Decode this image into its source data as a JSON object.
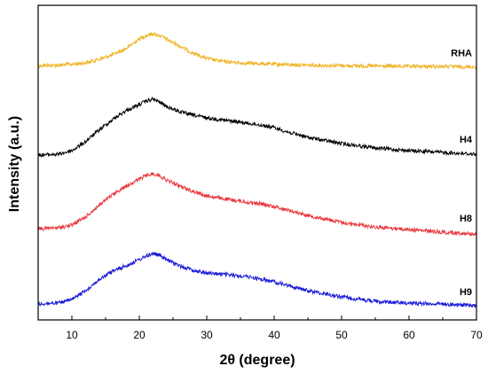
{
  "chart_data": {
    "type": "line",
    "title": "",
    "xlabel": "2θ (degree)",
    "ylabel": "Intensity (a.u.)",
    "xlim": [
      5,
      70
    ],
    "xticks": [
      10,
      20,
      30,
      40,
      50,
      60,
      70
    ],
    "yticks_shown": false,
    "grid": false,
    "legend": "labels at right end of each curve",
    "series": [
      {
        "name": "RHA",
        "color": "#f0b323",
        "x": [
          5,
          8,
          10,
          12,
          14,
          16,
          18,
          20,
          21,
          22,
          23,
          24,
          26,
          28,
          30,
          32,
          35,
          40,
          45,
          50,
          55,
          60,
          65,
          70
        ],
        "y": [
          74,
          73.5,
          72.5,
          71,
          67,
          62,
          55,
          44,
          40,
          38,
          40,
          44,
          52,
          60,
          66,
          69,
          71,
          72.5,
          73.5,
          74,
          74.5,
          75,
          75,
          75.5
        ]
      },
      {
        "name": "H4",
        "color": "#000000",
        "x": [
          5,
          8,
          10,
          12,
          14,
          16,
          18,
          20,
          21,
          22,
          23,
          24,
          26,
          28,
          30,
          33,
          36,
          38,
          40,
          42,
          45,
          50,
          55,
          60,
          65,
          70
        ],
        "y": [
          175,
          174,
          170,
          160,
          147,
          135,
          125,
          118,
          114,
          112,
          115,
          120,
          126,
          130,
          133,
          136,
          139,
          141,
          144,
          149,
          155,
          162,
          167,
          170,
          172,
          174
        ]
      },
      {
        "name": "H8",
        "color": "#e8383d",
        "x": [
          5,
          8,
          10,
          12,
          14,
          16,
          18,
          20,
          21,
          22,
          23,
          24,
          26,
          28,
          30,
          33,
          36,
          38,
          40,
          42,
          45,
          50,
          55,
          60,
          65,
          70
        ],
        "y": [
          258,
          257,
          254,
          245,
          232,
          220,
          210,
          202,
          198,
          196,
          198,
          203,
          210,
          216,
          221,
          225,
          228,
          230,
          233,
          237,
          243,
          251,
          256,
          259,
          262,
          264
        ]
      },
      {
        "name": "H9",
        "color": "#1a1ad8",
        "x": [
          5,
          8,
          10,
          12,
          14,
          16,
          18,
          20,
          21,
          22,
          23,
          24,
          26,
          28,
          30,
          33,
          36,
          38,
          40,
          42,
          45,
          50,
          55,
          60,
          65,
          70
        ],
        "y": [
          343,
          342,
          338,
          328,
          316,
          306,
          300,
          293,
          289,
          286,
          288,
          293,
          300,
          305,
          308,
          310,
          312,
          315,
          318,
          322,
          328,
          335,
          340,
          342,
          343,
          345
        ]
      }
    ]
  }
}
